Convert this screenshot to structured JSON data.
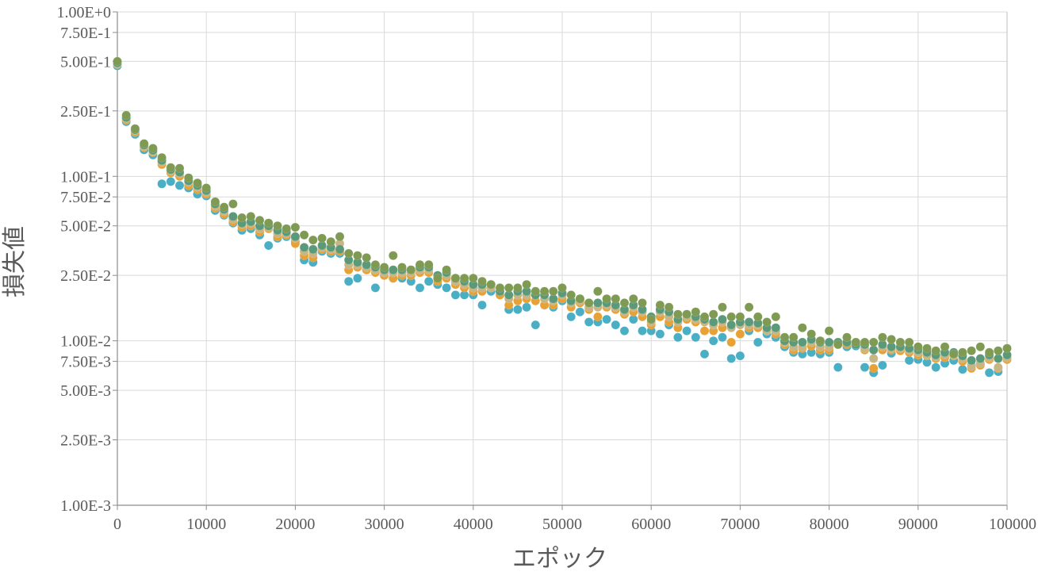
{
  "chart_data": {
    "type": "scatter",
    "title": "",
    "xlabel": "エポック",
    "ylabel": "損失値",
    "xlim": [
      0,
      100000
    ],
    "ylim": [
      0.001,
      1.0
    ],
    "yscale": "log",
    "grid": true,
    "legend": "none",
    "x_ticks": [
      {
        "value": 0,
        "label": "0"
      },
      {
        "value": 10000,
        "label": "10000"
      },
      {
        "value": 20000,
        "label": "20000"
      },
      {
        "value": 30000,
        "label": "30000"
      },
      {
        "value": 40000,
        "label": "40000"
      },
      {
        "value": 50000,
        "label": "50000"
      },
      {
        "value": 60000,
        "label": "60000"
      },
      {
        "value": 70000,
        "label": "70000"
      },
      {
        "value": 80000,
        "label": "80000"
      },
      {
        "value": 90000,
        "label": "90000"
      },
      {
        "value": 100000,
        "label": "100000"
      }
    ],
    "y_ticks": [
      {
        "value": 1.0,
        "label": "1.00E+0"
      },
      {
        "value": 0.75,
        "label": "7.50E-1"
      },
      {
        "value": 0.5,
        "label": "5.00E-1"
      },
      {
        "value": 0.25,
        "label": "2.50E-1"
      },
      {
        "value": 0.1,
        "label": "1.00E-1"
      },
      {
        "value": 0.075,
        "label": "7.50E-2"
      },
      {
        "value": 0.05,
        "label": "5.00E-2"
      },
      {
        "value": 0.025,
        "label": "2.50E-2"
      },
      {
        "value": 0.01,
        "label": "1.00E-2"
      },
      {
        "value": 0.0075,
        "label": "7.50E-3"
      },
      {
        "value": 0.005,
        "label": "5.00E-3"
      },
      {
        "value": 0.0025,
        "label": "2.50E-3"
      },
      {
        "value": 0.001,
        "label": "1.00E-3"
      }
    ],
    "x": [
      0,
      1000,
      2000,
      3000,
      4000,
      5000,
      6000,
      7000,
      8000,
      9000,
      10000,
      11000,
      12000,
      13000,
      14000,
      15000,
      16000,
      17000,
      18000,
      19000,
      20000,
      21000,
      22000,
      23000,
      24000,
      25000,
      26000,
      27000,
      28000,
      29000,
      30000,
      31000,
      32000,
      33000,
      34000,
      35000,
      36000,
      37000,
      38000,
      39000,
      40000,
      41000,
      42000,
      43000,
      44000,
      45000,
      46000,
      47000,
      48000,
      49000,
      50000,
      51000,
      52000,
      53000,
      54000,
      55000,
      56000,
      57000,
      58000,
      59000,
      60000,
      61000,
      62000,
      63000,
      64000,
      65000,
      66000,
      67000,
      68000,
      69000,
      70000,
      71000,
      72000,
      73000,
      74000,
      75000,
      76000,
      77000,
      78000,
      79000,
      80000,
      81000,
      82000,
      83000,
      84000,
      85000,
      86000,
      87000,
      88000,
      89000,
      90000,
      91000,
      92000,
      93000,
      94000,
      95000,
      96000,
      97000,
      98000,
      99000,
      100000
    ],
    "series": [
      {
        "color": "#4aaec4",
        "values": [
          0.47,
          0.215,
          0.18,
          0.145,
          0.135,
          0.09,
          0.093,
          0.088,
          0.085,
          0.078,
          0.076,
          0.062,
          0.058,
          0.052,
          0.047,
          0.048,
          0.044,
          0.038,
          0.042,
          0.043,
          0.04,
          0.031,
          0.03,
          0.035,
          0.034,
          0.034,
          0.023,
          0.024,
          0.027,
          0.021,
          0.025,
          0.024,
          0.024,
          0.023,
          0.021,
          0.023,
          0.022,
          0.021,
          0.019,
          0.019,
          0.019,
          0.0165,
          0.02,
          0.019,
          0.0155,
          0.0155,
          0.016,
          0.0125,
          0.0165,
          0.016,
          0.0175,
          0.014,
          0.015,
          0.013,
          0.013,
          0.0135,
          0.0125,
          0.0115,
          0.0135,
          0.0115,
          0.0115,
          0.011,
          0.0125,
          0.0105,
          0.0115,
          0.0105,
          0.0083,
          0.01,
          0.0105,
          0.0078,
          0.0081,
          0.0115,
          0.0098,
          0.011,
          0.0105,
          0.0092,
          0.0085,
          0.0083,
          0.0085,
          0.0083,
          0.0085,
          0.0069,
          0.0092,
          0.0093,
          0.0069,
          0.0064,
          0.0071,
          0.0084,
          0.0088,
          0.0076,
          0.0077,
          0.0074,
          0.0069,
          0.0073,
          0.0076,
          0.0067,
          0.0071,
          0.0072,
          0.0064,
          0.0065,
          0.0077
        ]
      },
      {
        "color": "#e8a135",
        "values": [
          0.48,
          0.22,
          0.185,
          0.15,
          0.14,
          0.118,
          0.105,
          0.1,
          0.088,
          0.083,
          0.078,
          0.064,
          0.059,
          0.053,
          0.049,
          0.05,
          0.046,
          0.048,
          0.043,
          0.044,
          0.039,
          0.033,
          0.032,
          0.036,
          0.035,
          0.035,
          0.027,
          0.028,
          0.027,
          0.026,
          0.025,
          0.024,
          0.025,
          0.025,
          0.026,
          0.026,
          0.023,
          0.024,
          0.022,
          0.021,
          0.02,
          0.02,
          0.021,
          0.019,
          0.0165,
          0.0175,
          0.018,
          0.0175,
          0.0165,
          0.0165,
          0.018,
          0.016,
          0.017,
          0.0155,
          0.014,
          0.016,
          0.0155,
          0.0145,
          0.015,
          0.014,
          0.0125,
          0.014,
          0.013,
          0.012,
          0.0135,
          0.013,
          0.0115,
          0.0115,
          0.012,
          0.0098,
          0.011,
          0.012,
          0.012,
          0.0115,
          0.011,
          0.0095,
          0.0088,
          0.009,
          0.0093,
          0.0088,
          0.0088,
          0.0095,
          0.0095,
          0.0095,
          0.0088,
          0.0068,
          0.0088,
          0.0088,
          0.0087,
          0.0085,
          0.0082,
          0.0081,
          0.0078,
          0.0079,
          0.0081,
          0.0075,
          0.0068,
          0.0071,
          0.0077,
          0.0068,
          0.0077
        ]
      },
      {
        "color": "#c9b583",
        "values": [
          0.485,
          0.225,
          0.19,
          0.152,
          0.142,
          0.122,
          0.108,
          0.104,
          0.092,
          0.086,
          0.08,
          0.066,
          0.061,
          0.055,
          0.051,
          0.052,
          0.048,
          0.049,
          0.045,
          0.045,
          0.042,
          0.035,
          0.034,
          0.037,
          0.036,
          0.039,
          0.029,
          0.029,
          0.028,
          0.027,
          0.026,
          0.026,
          0.026,
          0.026,
          0.027,
          0.027,
          0.024,
          0.025,
          0.023,
          0.022,
          0.021,
          0.021,
          0.021,
          0.02,
          0.018,
          0.019,
          0.019,
          0.019,
          0.018,
          0.0175,
          0.019,
          0.017,
          0.0175,
          0.016,
          0.016,
          0.0165,
          0.016,
          0.015,
          0.016,
          0.015,
          0.013,
          0.015,
          0.014,
          0.013,
          0.014,
          0.0135,
          0.013,
          0.0125,
          0.013,
          0.012,
          0.0125,
          0.0125,
          0.0125,
          0.0115,
          0.0115,
          0.0098,
          0.0092,
          0.0092,
          0.0098,
          0.0092,
          0.0092,
          0.0098,
          0.0098,
          0.0098,
          0.009,
          0.0078,
          0.0092,
          0.009,
          0.009,
          0.0088,
          0.0085,
          0.0082,
          0.008,
          0.0082,
          0.0082,
          0.0078,
          0.007,
          0.0073,
          0.0079,
          0.0069,
          0.0079
        ]
      },
      {
        "color": "#5a9a7a",
        "values": [
          0.49,
          0.228,
          0.192,
          0.155,
          0.144,
          0.125,
          0.11,
          0.106,
          0.094,
          0.088,
          0.082,
          0.068,
          0.063,
          0.057,
          0.052,
          0.053,
          0.05,
          0.05,
          0.047,
          0.046,
          0.043,
          0.037,
          0.036,
          0.038,
          0.037,
          0.036,
          0.031,
          0.03,
          0.029,
          0.028,
          0.027,
          0.027,
          0.027,
          0.027,
          0.028,
          0.028,
          0.025,
          0.026,
          0.024,
          0.023,
          0.022,
          0.022,
          0.022,
          0.02,
          0.019,
          0.02,
          0.02,
          0.019,
          0.019,
          0.018,
          0.0195,
          0.0175,
          0.018,
          0.017,
          0.017,
          0.017,
          0.0165,
          0.0155,
          0.0165,
          0.0155,
          0.014,
          0.0155,
          0.015,
          0.0135,
          0.0145,
          0.014,
          0.0135,
          0.013,
          0.0135,
          0.0125,
          0.013,
          0.013,
          0.0128,
          0.012,
          0.012,
          0.01,
          0.0098,
          0.0098,
          0.0102,
          0.0098,
          0.0098,
          0.0098,
          0.0098,
          0.0095,
          0.0095,
          0.0088,
          0.0095,
          0.0092,
          0.0092,
          0.009,
          0.0088,
          0.0085,
          0.0082,
          0.0085,
          0.0085,
          0.0081,
          0.0076,
          0.0078,
          0.0082,
          0.0078,
          0.0082
        ]
      },
      {
        "color": "#7f9a52",
        "values": [
          0.5,
          0.235,
          0.195,
          0.158,
          0.148,
          0.13,
          0.113,
          0.112,
          0.098,
          0.091,
          0.085,
          0.07,
          0.065,
          0.068,
          0.056,
          0.057,
          0.054,
          0.052,
          0.05,
          0.048,
          0.049,
          0.044,
          0.041,
          0.042,
          0.04,
          0.043,
          0.034,
          0.033,
          0.032,
          0.029,
          0.028,
          0.033,
          0.028,
          0.027,
          0.029,
          0.029,
          0.024,
          0.027,
          0.024,
          0.024,
          0.024,
          0.023,
          0.022,
          0.021,
          0.021,
          0.021,
          0.022,
          0.02,
          0.02,
          0.02,
          0.021,
          0.019,
          0.018,
          0.017,
          0.02,
          0.018,
          0.018,
          0.017,
          0.018,
          0.017,
          0.0135,
          0.0165,
          0.016,
          0.0145,
          0.0145,
          0.015,
          0.014,
          0.0145,
          0.016,
          0.014,
          0.014,
          0.016,
          0.014,
          0.013,
          0.014,
          0.0105,
          0.0105,
          0.012,
          0.011,
          0.01,
          0.0115,
          0.0095,
          0.0105,
          0.0098,
          0.0098,
          0.0098,
          0.0105,
          0.0102,
          0.0098,
          0.0098,
          0.0092,
          0.009,
          0.0087,
          0.0092,
          0.0083,
          0.0085,
          0.0087,
          0.0092,
          0.0085,
          0.0087,
          0.009
        ]
      }
    ]
  }
}
